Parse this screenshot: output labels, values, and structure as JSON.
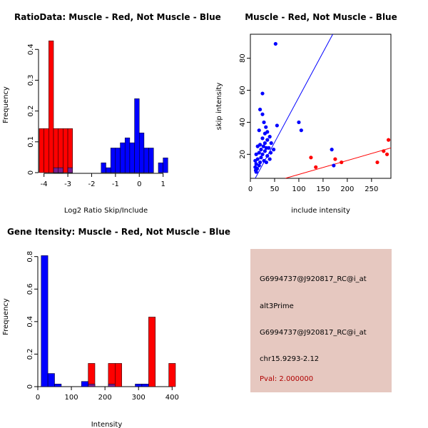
{
  "colors": {
    "muscle": "#ff0000",
    "not_muscle": "#0000ff",
    "overlap": "#7a1f8f",
    "panel": "#e6c8c0",
    "pval_text": "#b00000"
  },
  "chart_data": [
    {
      "type": "bar",
      "title": "RatioData: Muscle - Red, Not Muscle - Blue",
      "xlabel": "Log2 Ratio Skip/Include",
      "ylabel": "Frequency",
      "xlim": [
        -4.2,
        1.4
      ],
      "ylim": [
        0,
        0.44
      ],
      "xticks": [
        -4,
        -3,
        -2,
        -1,
        0,
        1
      ],
      "yticks": [
        0.0,
        0.1,
        0.2,
        0.3,
        0.4
      ],
      "bin_width": 0.2,
      "series": [
        {
          "name": "Not Muscle",
          "color": "#0000ff",
          "bins": [
            [
              -3.6,
              0.016
            ],
            [
              -3.4,
              0.016
            ],
            [
              -3.0,
              0.016
            ],
            [
              -1.6,
              0.032
            ],
            [
              -1.4,
              0.016
            ],
            [
              -1.2,
              0.08
            ],
            [
              -1.0,
              0.08
            ],
            [
              -0.8,
              0.097
            ],
            [
              -0.6,
              0.113
            ],
            [
              -0.4,
              0.097
            ],
            [
              -0.2,
              0.24
            ],
            [
              0.0,
              0.129
            ],
            [
              0.2,
              0.08
            ],
            [
              0.4,
              0.08
            ],
            [
              0.8,
              0.032
            ],
            [
              1.0,
              0.048
            ]
          ]
        },
        {
          "name": "Muscle",
          "color": "#ff0000",
          "bins": [
            [
              -4.2,
              0.143
            ],
            [
              -4.0,
              0.143
            ],
            [
              -3.8,
              0.428
            ],
            [
              -3.6,
              0.143
            ],
            [
              -3.4,
              0.143
            ],
            [
              -3.2,
              0.143
            ],
            [
              -3.0,
              0.143
            ]
          ]
        }
      ]
    },
    {
      "type": "scatter",
      "title": "Muscle - Red, Not Muscle - Blue",
      "xlabel": "include intensity",
      "ylabel": "skip intensity",
      "xlim": [
        0,
        290
      ],
      "ylim": [
        5,
        95
      ],
      "xticks": [
        0,
        50,
        100,
        150,
        200,
        250
      ],
      "yticks": [
        20,
        40,
        60,
        80
      ],
      "series": [
        {
          "name": "Not Muscle",
          "color": "#0000ff",
          "points": [
            [
              52,
              89
            ],
            [
              25,
              58
            ],
            [
              20,
              48
            ],
            [
              25,
              45
            ],
            [
              28,
              40
            ],
            [
              32,
              37
            ],
            [
              18,
              35
            ],
            [
              30,
              33
            ],
            [
              35,
              34
            ],
            [
              40,
              31
            ],
            [
              25,
              30
            ],
            [
              35,
              29
            ],
            [
              43,
              27
            ],
            [
              30,
              27
            ],
            [
              20,
              26
            ],
            [
              15,
              25
            ],
            [
              27,
              25
            ],
            [
              33,
              24
            ],
            [
              38,
              24
            ],
            [
              22,
              23
            ],
            [
              48,
              23
            ],
            [
              30,
              22
            ],
            [
              42,
              21
            ],
            [
              18,
              21
            ],
            [
              12,
              20
            ],
            [
              25,
              20
            ],
            [
              35,
              19
            ],
            [
              22,
              18
            ],
            [
              40,
              17
            ],
            [
              15,
              17
            ],
            [
              28,
              16
            ],
            [
              10,
              16
            ],
            [
              20,
              15
            ],
            [
              33,
              15
            ],
            [
              12,
              14
            ],
            [
              18,
              13
            ],
            [
              10,
              12
            ],
            [
              14,
              11
            ],
            [
              11,
              10
            ],
            [
              12,
              9
            ],
            [
              55,
              38
            ],
            [
              100,
              40
            ],
            [
              105,
              35
            ],
            [
              168,
              23
            ],
            [
              172,
              13
            ]
          ]
        },
        {
          "name": "Muscle",
          "color": "#ff0000",
          "points": [
            [
              125,
              18
            ],
            [
              135,
              12
            ],
            [
              175,
              17
            ],
            [
              188,
              15
            ],
            [
              262,
              15
            ],
            [
              275,
              22
            ],
            [
              282,
              20
            ],
            [
              285,
              29
            ]
          ]
        }
      ],
      "lines": [
        {
          "color": "#0000ff",
          "from": [
            10,
            5
          ],
          "to": [
            170,
            95
          ]
        },
        {
          "color": "#ff0000",
          "from": [
            72,
            5
          ],
          "to": [
            290,
            24
          ]
        }
      ]
    },
    {
      "type": "bar",
      "title": "Gene Itensity: Muscle - Red, Not Muscle - Blue",
      "xlabel": "Intensity",
      "ylabel": "Frequency",
      "xlim": [
        0,
        410
      ],
      "ylim": [
        0,
        0.86
      ],
      "xticks": [
        0,
        100,
        200,
        300,
        400
      ],
      "yticks": [
        0.0,
        0.2,
        0.4,
        0.6,
        0.8
      ],
      "bin_width": 20,
      "series": [
        {
          "name": "Not Muscle",
          "color": "#0000ff",
          "bins": [
            [
              10,
              0.806
            ],
            [
              30,
              0.081
            ],
            [
              50,
              0.016
            ],
            [
              130,
              0.032
            ],
            [
              150,
              0.016
            ],
            [
              210,
              0.016
            ],
            [
              290,
              0.016
            ],
            [
              310,
              0.016
            ]
          ]
        },
        {
          "name": "Muscle",
          "color": "#ff0000",
          "bins": [
            [
              150,
              0.143
            ],
            [
              210,
              0.143
            ],
            [
              230,
              0.143
            ],
            [
              330,
              0.428
            ],
            [
              390,
              0.143
            ]
          ]
        }
      ]
    }
  ],
  "info": {
    "line1": "G6994737@J920817_RC@i_at",
    "line2": "alt3Prime",
    "line3": "G6994737@J920817_RC@i_at",
    "line4": "chr15.9293-2.12",
    "pval": "Pval: 2.000000"
  }
}
